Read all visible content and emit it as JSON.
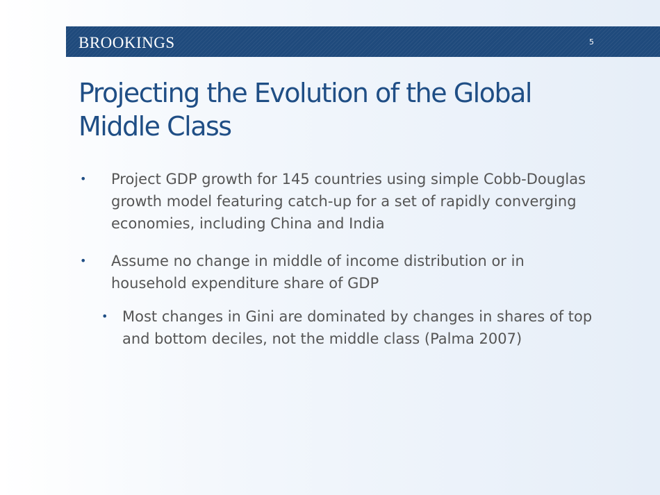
{
  "header": {
    "logo": "BROOKINGS",
    "page_number": "5"
  },
  "title": "Projecting the Evolution of the Global Middle Class",
  "bullets": [
    {
      "text": "Project GDP growth for 145 countries using simple Cobb-Douglas growth model featuring catch-up for a set of rapidly converging economies, including China and India"
    },
    {
      "text": "Assume no change in middle of income distribution or in household expenditure share of GDP",
      "sub": [
        {
          "text": "Most changes in Gini are dominated by changes in shares of top and bottom deciles, not the middle class (Palma 2007)"
        }
      ]
    }
  ],
  "bullet_glyph": "•",
  "colors": {
    "header": "#1f4a7c",
    "title": "#1f4e85",
    "body": "#555555"
  }
}
